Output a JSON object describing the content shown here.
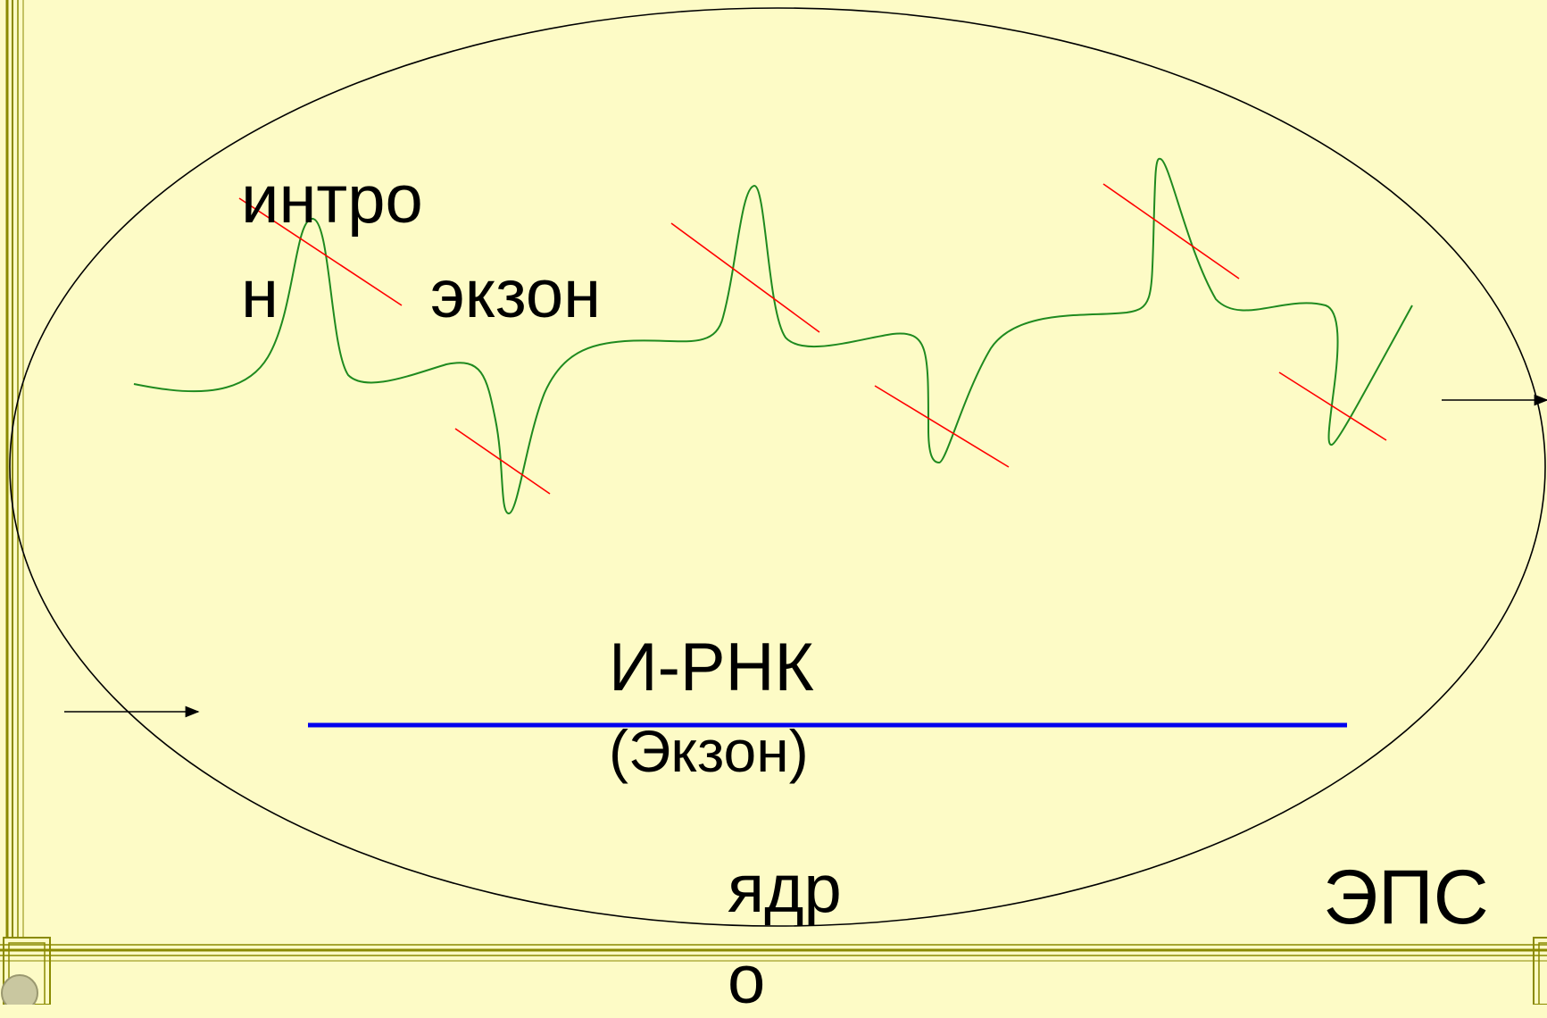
{
  "labels": {
    "intron_line1": "интро",
    "intron_line2": "н",
    "exon": "экзон",
    "mrna": "И-РНК",
    "mrna_sub": "(Экзон)",
    "nucleus_line1": "ядр",
    "nucleus_line2": "о",
    "er": "ЭПС"
  },
  "colors": {
    "background": "#fdfbc6",
    "frame": "#8a8a00",
    "pre_mrna_strand": "#1f8a1f",
    "cut_marks": "#ff0000",
    "mrna_strand": "#0000ee",
    "nucleus_outline": "#000000"
  }
}
